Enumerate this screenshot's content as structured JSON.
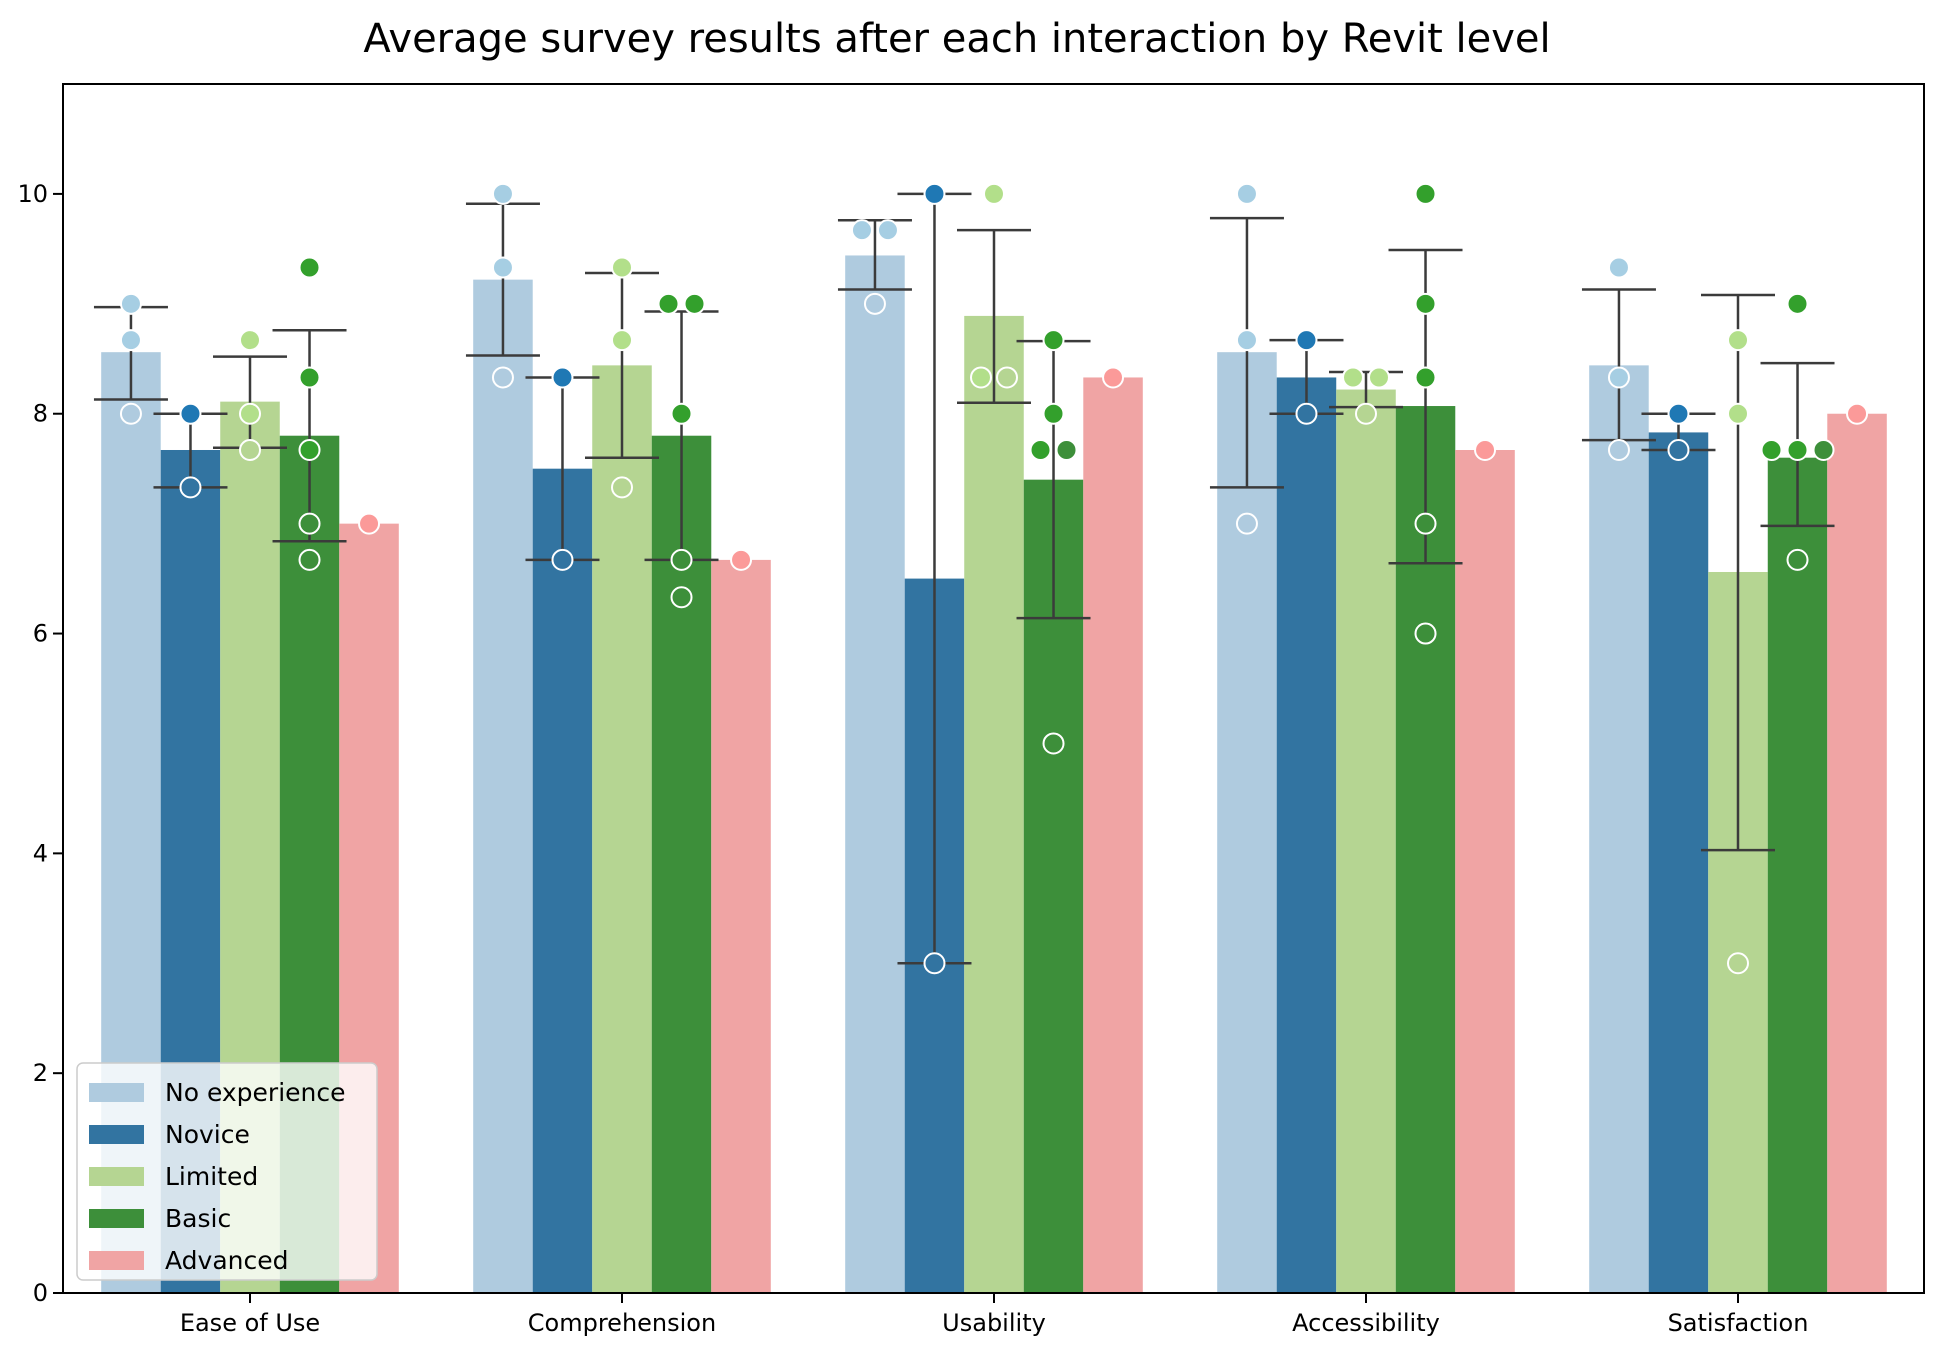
{
  "chart_data": {
    "type": "bar",
    "title": "Average survey results after each interaction by Revit level",
    "xlabel": "",
    "ylabel": "",
    "ylim": [
      0,
      11
    ],
    "yticks": [
      0,
      2,
      4,
      6,
      8,
      10
    ],
    "grid": false,
    "legend_position": "bottom-left",
    "categories": [
      "Ease of Use",
      "Comprehension",
      "Usability",
      "Accessibility",
      "Satisfaction"
    ],
    "series": [
      {
        "name": "No experience",
        "color": "#afcbdf",
        "point_color": "#a6cee3",
        "values": [
          8.56,
          9.22,
          9.44,
          8.56,
          8.44
        ],
        "error_low": [
          8.13,
          8.53,
          9.13,
          7.33,
          7.76
        ],
        "error_high": [
          8.97,
          9.91,
          9.76,
          9.78,
          9.13
        ],
        "points": [
          [
            9.0,
            8.67,
            8.0
          ],
          [
            10.0,
            9.33,
            8.33
          ],
          [
            9.67,
            9.67,
            9.0
          ],
          [
            10.0,
            8.67,
            7.0
          ],
          [
            9.33,
            8.33,
            7.67
          ]
        ]
      },
      {
        "name": "Novice",
        "color": "#3274a1",
        "point_color": "#1f78b4",
        "values": [
          7.67,
          7.5,
          6.5,
          8.33,
          7.83
        ],
        "error_low": [
          7.33,
          6.67,
          3.0,
          8.0,
          7.67
        ],
        "error_high": [
          8.0,
          8.33,
          10.0,
          8.67,
          8.0
        ],
        "points": [
          [
            8.0,
            7.33
          ],
          [
            8.33,
            6.67
          ],
          [
            10.0,
            3.0
          ],
          [
            8.67,
            8.0
          ],
          [
            8.0,
            7.67
          ]
        ]
      },
      {
        "name": "Limited",
        "color": "#b5d592",
        "point_color": "#b2df8a",
        "values": [
          8.11,
          8.44,
          8.89,
          8.22,
          6.56
        ],
        "error_low": [
          7.69,
          7.6,
          8.1,
          8.06,
          4.03
        ],
        "error_high": [
          8.52,
          9.28,
          9.67,
          8.38,
          9.08
        ],
        "points": [
          [
            8.67,
            8.0,
            7.67
          ],
          [
            9.33,
            8.67,
            7.33
          ],
          [
            10.0,
            8.33,
            8.33
          ],
          [
            8.33,
            8.33,
            8.0
          ],
          [
            8.67,
            8.0,
            3.0
          ]
        ]
      },
      {
        "name": "Basic",
        "color": "#3d8f3a",
        "point_color": "#33a02c",
        "values": [
          7.8,
          7.8,
          7.4,
          8.07,
          7.6
        ],
        "error_low": [
          6.84,
          6.67,
          6.14,
          6.64,
          6.98
        ],
        "error_high": [
          8.76,
          8.93,
          8.66,
          9.49,
          8.46
        ],
        "points": [
          [
            9.33,
            8.33,
            7.67,
            7.0,
            6.67
          ],
          [
            9.0,
            9.0,
            8.0,
            6.67,
            6.33
          ],
          [
            8.67,
            8.0,
            7.67,
            7.67,
            5.0
          ],
          [
            10.0,
            9.0,
            8.33,
            7.0,
            6.0
          ],
          [
            9.0,
            7.67,
            7.67,
            7.67,
            6.67
          ]
        ]
      },
      {
        "name": "Advanced",
        "color": "#f0a4a4",
        "point_color": "#fb9a99",
        "values": [
          7.0,
          6.67,
          8.33,
          7.67,
          8.0
        ],
        "error_low": [
          7.0,
          6.67,
          8.33,
          7.67,
          8.0
        ],
        "error_high": [
          7.0,
          6.67,
          8.33,
          7.67,
          8.0
        ],
        "points": [
          [
            7.0
          ],
          [
            6.67
          ],
          [
            8.33
          ],
          [
            7.67
          ],
          [
            8.0
          ]
        ]
      }
    ]
  }
}
